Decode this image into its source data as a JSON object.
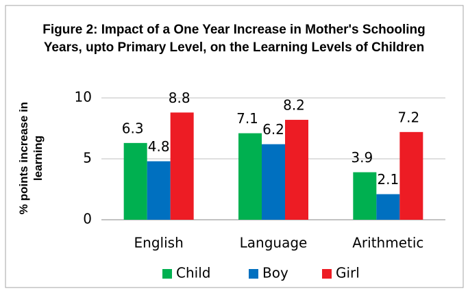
{
  "chart_data": {
    "type": "bar",
    "title": "Figure 2: Impact of a One Year Increase in Mother's Schooling Years, upto Primary Level, on the Learning Levels of Children",
    "y_label": "% points increase in learning",
    "categories": [
      "English",
      "Language",
      "Arithmetic"
    ],
    "series": [
      {
        "name": "Child",
        "color": "#00b050",
        "values": [
          6.3,
          7.1,
          3.9
        ]
      },
      {
        "name": "Boy",
        "color": "#0070c0",
        "values": [
          4.8,
          6.2,
          2.1
        ]
      },
      {
        "name": "Girl",
        "color": "#ed1c24",
        "values": [
          8.8,
          8.2,
          7.2
        ]
      }
    ],
    "ylim": [
      0,
      10
    ],
    "yticks": [
      0,
      5,
      10
    ],
    "grid": true,
    "legend": "bottom"
  }
}
